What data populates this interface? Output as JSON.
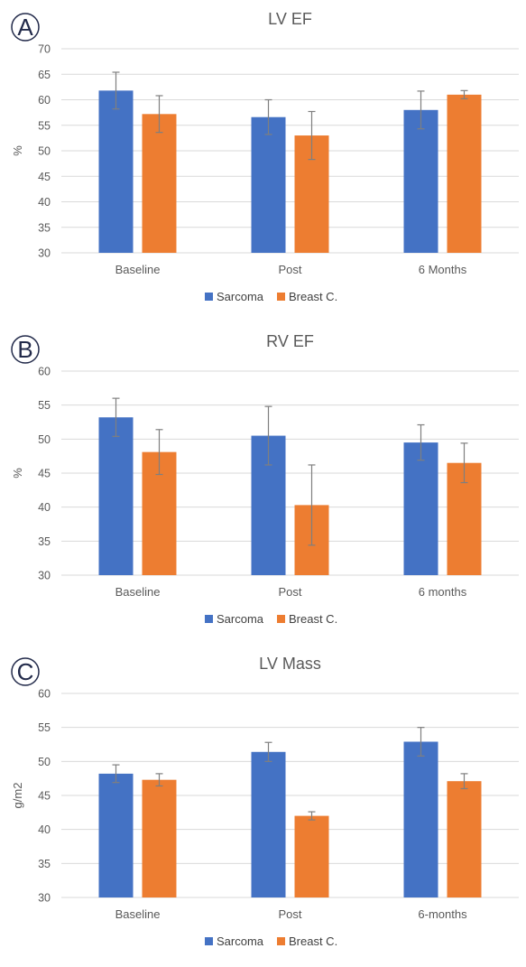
{
  "colors": {
    "Sarcoma": "#4472c4",
    "Breast C.": "#ed7d31"
  },
  "chart_data": [
    {
      "panel": "A",
      "type": "bar",
      "title": "LV EF",
      "xlabel": "",
      "ylabel": "%",
      "ylim": [
        30,
        70
      ],
      "yticks": [
        30,
        35,
        40,
        45,
        50,
        55,
        60,
        65,
        70
      ],
      "grid": true,
      "legend_position": "bottom",
      "categories": [
        "Baseline",
        "Post",
        "6 Months"
      ],
      "series": [
        {
          "name": "Sarcoma",
          "values": [
            61.8,
            56.6,
            58.0
          ],
          "errors": [
            3.6,
            3.4,
            3.7
          ]
        },
        {
          "name": "Breast C.",
          "values": [
            57.2,
            53.0,
            61.0
          ],
          "errors": [
            3.6,
            4.7,
            0.8
          ]
        }
      ]
    },
    {
      "panel": "B",
      "type": "bar",
      "title": "RV EF",
      "xlabel": "",
      "ylabel": "%",
      "ylim": [
        30,
        60
      ],
      "yticks": [
        30,
        35,
        40,
        45,
        50,
        55,
        60
      ],
      "grid": true,
      "legend_position": "bottom",
      "categories": [
        "Baseline",
        "Post",
        "6 months"
      ],
      "series": [
        {
          "name": "Sarcoma",
          "values": [
            53.2,
            50.5,
            49.5
          ],
          "errors": [
            2.8,
            4.3,
            2.6
          ]
        },
        {
          "name": "Breast C.",
          "values": [
            48.1,
            40.3,
            46.5
          ],
          "errors": [
            3.3,
            5.9,
            2.9
          ]
        }
      ]
    },
    {
      "panel": "C",
      "type": "bar",
      "title": "LV Mass",
      "xlabel": "",
      "ylabel": "g/m2",
      "ylim": [
        30,
        60
      ],
      "yticks": [
        30,
        35,
        40,
        45,
        50,
        55,
        60
      ],
      "grid": true,
      "legend_position": "bottom",
      "categories": [
        "Baseline",
        "Post",
        "6-months"
      ],
      "series": [
        {
          "name": "Sarcoma",
          "values": [
            48.2,
            51.4,
            52.9
          ],
          "errors": [
            1.3,
            1.4,
            2.1
          ]
        },
        {
          "name": "Breast C.",
          "values": [
            47.3,
            42.0,
            47.1
          ],
          "errors": [
            0.9,
            0.6,
            1.1
          ]
        }
      ]
    }
  ]
}
